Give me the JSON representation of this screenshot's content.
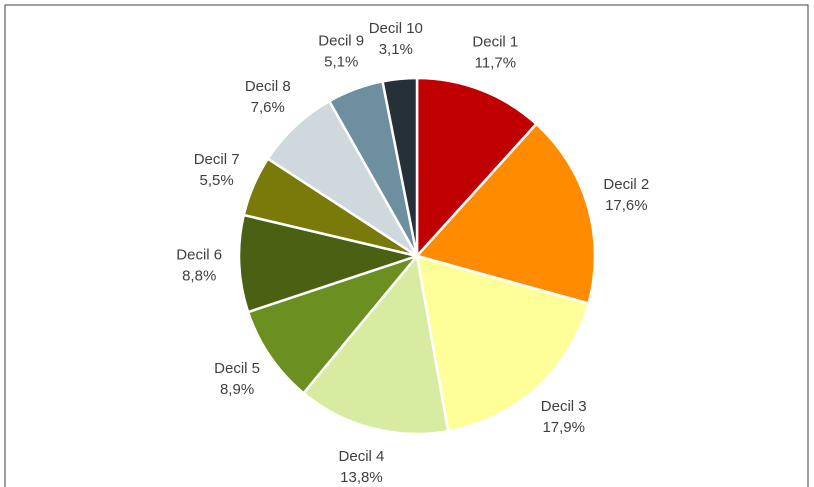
{
  "chart_data": {
    "type": "pie",
    "categories": [
      "Decil 1",
      "Decil 2",
      "Decil 3",
      "Decil 4",
      "Decil 5",
      "Decil 6",
      "Decil 7",
      "Decil 8",
      "Decil 9",
      "Decil 10"
    ],
    "values": [
      11.7,
      17.6,
      17.9,
      13.8,
      8.9,
      8.8,
      5.5,
      7.6,
      5.1,
      3.1
    ],
    "value_labels": [
      "11,7%",
      "17,6%",
      "17,9%",
      "13,8%",
      "8,9%",
      "8,8%",
      "5,5%",
      "7,6%",
      "5,1%",
      "3,1%"
    ],
    "colors": [
      "#c00000",
      "#ff8c00",
      "#ffff99",
      "#d7eca0",
      "#6b9020",
      "#4a6114",
      "#7a7a0a",
      "#cfd8dc",
      "#6e8fa0",
      "#253038"
    ]
  }
}
